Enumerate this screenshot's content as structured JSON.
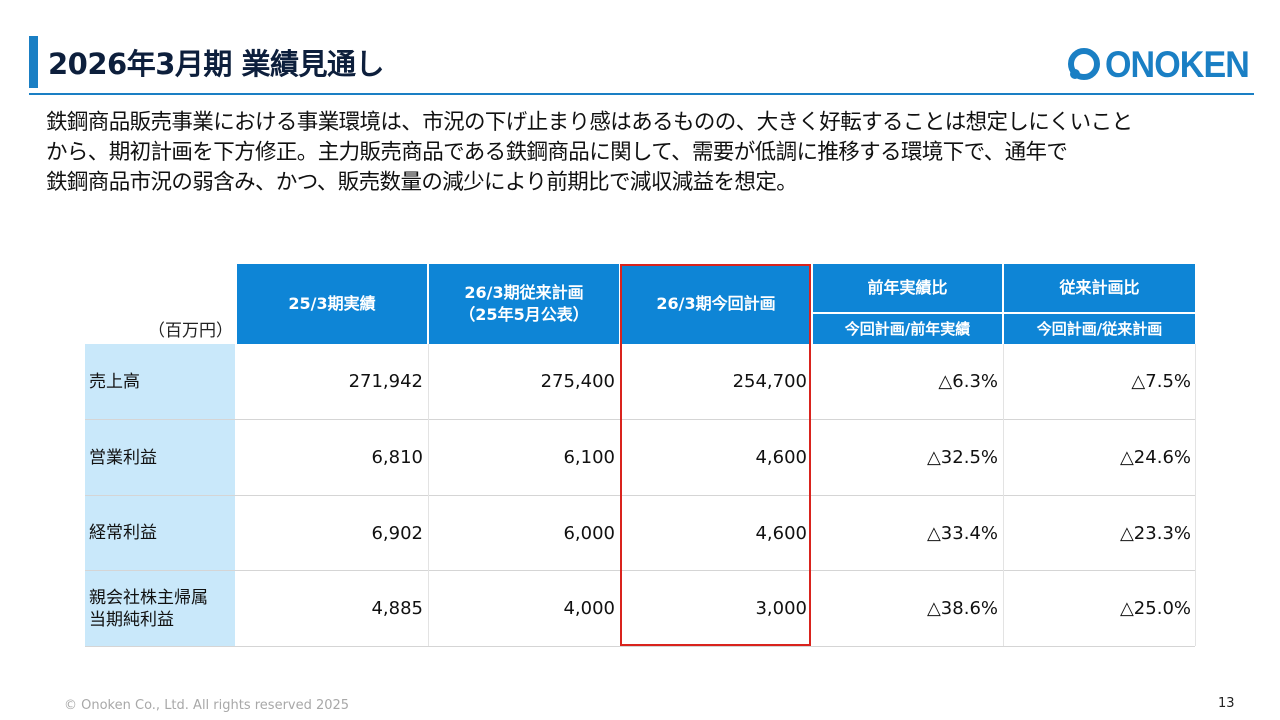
{
  "header": {
    "title": "2026年3月期 業績見通し",
    "logo_text": "ONOKEN",
    "logo_symbol": "O-ring-icon",
    "accent_color": "#1a7fc4"
  },
  "body_lines": [
    "鉄鋼商品販売事業における事業環境は、市況の下げ止まり感はあるものの、大きく好転することは想定しにくいこと",
    "から、期初計画を下方修正。主力販売商品である鉄鋼商品に関して、需要が低調に推移する環境下で、通年で",
    "鉄鋼商品市況の弱含み、かつ、販売数量の減少により前期比で減収減益を想定。"
  ],
  "table": {
    "unit_label": "（百万円）",
    "headers": {
      "actual": "25/3期実績",
      "prior_plan_line1": "26/3期従来計画",
      "prior_plan_line2": "（25年5月公表）",
      "current_plan": "26/3期今回計画",
      "yoy": "前年実績比",
      "vs_plan": "従来計画比",
      "yoy_sub": "今回計画/前年実績",
      "vs_plan_sub": "今回計画/従来計画"
    },
    "header_color": "#0e85d6",
    "label_color": "#c9e8fa",
    "highlight_color": "#d9231d",
    "rows": [
      {
        "label_line1": "売上高",
        "label_line2": "",
        "actual": "271,942",
        "prior_plan": "275,400",
        "current_plan": "254,700",
        "yoy": "△6.3%",
        "vs_plan": "△7.5%"
      },
      {
        "label_line1": "営業利益",
        "label_line2": "",
        "actual": "6,810",
        "prior_plan": "6,100",
        "current_plan": "4,600",
        "yoy": "△32.5%",
        "vs_plan": "△24.6%"
      },
      {
        "label_line1": "経常利益",
        "label_line2": "",
        "actual": "6,902",
        "prior_plan": "6,000",
        "current_plan": "4,600",
        "yoy": "△33.4%",
        "vs_plan": "△23.3%"
      },
      {
        "label_line1": "親会社株主帰属",
        "label_line2": "当期純利益",
        "actual": "4,885",
        "prior_plan": "4,000",
        "current_plan": "3,000",
        "yoy": "△38.6%",
        "vs_plan": "△25.0%"
      }
    ]
  },
  "footer": {
    "copyright": "© Onoken Co., Ltd. All rights reserved 2025",
    "page_number": "13"
  }
}
